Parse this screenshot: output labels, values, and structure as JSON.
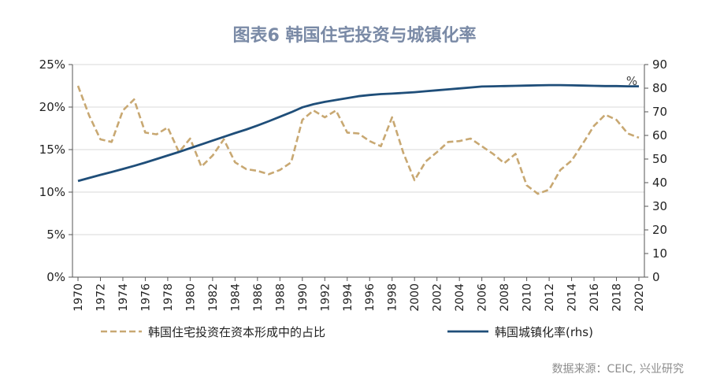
{
  "chart_data": {
    "type": "line",
    "title": "图表6  韩国住宅投资与城镇化率",
    "source": "数据来源：CEIC, 兴业研究",
    "right_axis_unit": "%",
    "x": [
      1970,
      1971,
      1972,
      1973,
      1974,
      1975,
      1976,
      1977,
      1978,
      1979,
      1980,
      1981,
      1982,
      1983,
      1984,
      1985,
      1986,
      1987,
      1988,
      1989,
      1990,
      1991,
      1992,
      1993,
      1994,
      1995,
      1996,
      1997,
      1998,
      1999,
      2000,
      2001,
      2002,
      2003,
      2004,
      2005,
      2006,
      2007,
      2008,
      2009,
      2010,
      2011,
      2012,
      2013,
      2014,
      2015,
      2016,
      2017,
      2018,
      2019,
      2020
    ],
    "x_tick_labels": [
      "1970",
      "1972",
      "1974",
      "1976",
      "1978",
      "1980",
      "1982",
      "1984",
      "1986",
      "1988",
      "1990",
      "1992",
      "1994",
      "1996",
      "1998",
      "2000",
      "2002",
      "2004",
      "2006",
      "2008",
      "2010",
      "2012",
      "2014",
      "2016",
      "2018",
      "2020"
    ],
    "left_axis": {
      "ylim": [
        0,
        25
      ],
      "ticks": [
        0,
        5,
        10,
        15,
        20,
        25
      ],
      "tick_labels": [
        "0%",
        "5%",
        "10%",
        "15%",
        "20%",
        "25%"
      ]
    },
    "right_axis": {
      "ylim": [
        0,
        90
      ],
      "ticks": [
        0,
        10,
        20,
        30,
        40,
        50,
        60,
        70,
        80,
        90
      ],
      "tick_labels": [
        "0",
        "10",
        "20",
        "30",
        "40",
        "50",
        "60",
        "70",
        "80",
        "90"
      ]
    },
    "grid": "horizontal",
    "legend_position": "bottom",
    "series": [
      {
        "name": "韩国住宅投资在资本形成中的占比",
        "axis": "left",
        "style": "dashed",
        "color": "#c8a872",
        "values": [
          22.5,
          19.0,
          16.2,
          15.9,
          19.6,
          20.9,
          17.0,
          16.8,
          17.6,
          14.7,
          16.3,
          13.0,
          14.3,
          16.2,
          13.5,
          12.7,
          12.5,
          12.1,
          12.6,
          13.5,
          18.5,
          19.6,
          18.8,
          19.6,
          17.0,
          16.9,
          16.0,
          15.4,
          18.8,
          14.6,
          11.4,
          13.6,
          14.7,
          15.9,
          16.0,
          16.3,
          15.4,
          14.5,
          13.4,
          14.5,
          10.8,
          9.8,
          10.3,
          12.6,
          13.7,
          15.7,
          17.8,
          19.1,
          18.5,
          16.9,
          16.4
        ]
      },
      {
        "name": "韩国城镇化率(rhs)",
        "axis": "right",
        "style": "solid",
        "color": "#1f4e79",
        "values": [
          40.7,
          42.0,
          43.3,
          44.5,
          45.8,
          47.1,
          48.5,
          50.0,
          51.5,
          53.0,
          54.6,
          56.2,
          57.8,
          59.4,
          61.0,
          62.5,
          64.2,
          66.0,
          67.9,
          69.8,
          71.9,
          73.2,
          74.2,
          75.0,
          75.8,
          76.6,
          77.1,
          77.5,
          77.7,
          78.0,
          78.3,
          78.7,
          79.1,
          79.5,
          79.9,
          80.3,
          80.7,
          80.8,
          80.9,
          81.0,
          81.1,
          81.2,
          81.3,
          81.3,
          81.2,
          81.1,
          81.0,
          80.9,
          80.9,
          80.8,
          80.8
        ]
      }
    ]
  }
}
